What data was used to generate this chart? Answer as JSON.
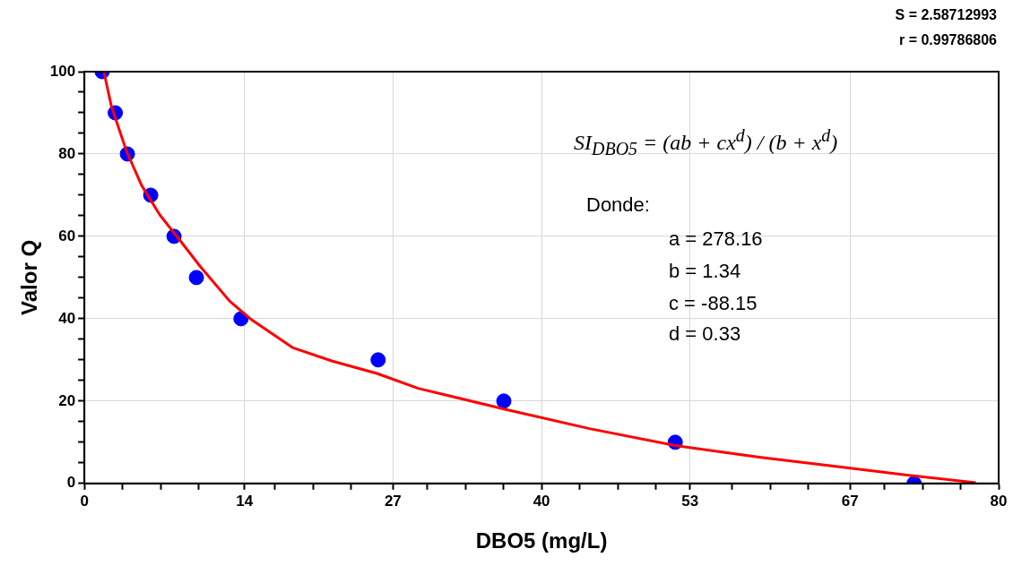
{
  "chart_data": {
    "type": "scatter",
    "xlabel": "DBO5 (mg/L)",
    "ylabel": "Valor Q",
    "annotations": [
      "S = 2.58712993",
      "r = 0.99786806",
      "SI$_{DBO5}$ = (ab + cx$^{d}$) / (b + x$^{d}$)",
      "Donde:",
      "a = 278.16",
      "b = 1.34",
      "c = -88.15",
      "d = 0.33"
    ],
    "series": [
      {
        "color": "#0000ff",
        "x": [
          1.55,
          2.7,
          3.76,
          5.8,
          7.84,
          9.8,
          13.7,
          25.7,
          36.7,
          51.7,
          72.6
        ],
        "values": [
          100,
          90,
          80,
          70,
          60,
          50,
          40,
          30,
          20,
          10,
          0
        ]
      },
      {
        "type": "line",
        "color": "#ff0000",
        "marker": "none",
        "x": [
          1.7,
          2.37,
          3.68,
          5.0,
          6.6,
          8.4,
          10.1,
          12.7,
          14.6,
          18.2,
          21.7,
          25.6,
          29.2,
          36.8,
          44.2,
          51.7,
          59.2,
          66.7,
          72.7,
          78.0
        ],
        "values": [
          100,
          91.5,
          80.7,
          72.4,
          65.2,
          58.9,
          52.8,
          44.3,
          39.8,
          33.0,
          29.7,
          26.7,
          23.1,
          18.0,
          13.3,
          9.2,
          6.3,
          3.8,
          1.8,
          0.2
        ]
      }
    ],
    "marker": "circle",
    "legend": false,
    "grid": true,
    "xlim": [
      0,
      80
    ],
    "xticks": [
      0,
      {
        "value": 3.333,
        "label": null
      },
      {
        "value": 6.667,
        "label": null
      },
      {
        "value": 10,
        "label": null
      },
      14,
      {
        "value": 16.667,
        "label": null
      },
      {
        "value": 20,
        "label": null
      },
      {
        "value": 23.333,
        "label": null
      },
      27,
      {
        "value": 30,
        "label": null
      },
      {
        "value": 33.333,
        "label": null
      },
      {
        "value": 36.667,
        "label": null
      },
      40,
      {
        "value": 43.333,
        "label": null
      },
      {
        "value": 46.667,
        "label": null
      },
      {
        "value": 50,
        "label": null
      },
      53,
      {
        "value": 56.667,
        "label": null
      },
      {
        "value": 60,
        "label": null
      },
      {
        "value": 63.333,
        "label": null
      },
      67,
      {
        "value": 70,
        "label": null
      },
      {
        "value": 73.333,
        "label": null
      },
      {
        "value": 76.667,
        "label": null
      },
      80
    ],
    "ylim": [
      0,
      100
    ],
    "yticks": [
      0,
      {
        "value": 5,
        "label": null
      },
      {
        "value": 10,
        "label": null
      },
      {
        "value": 15,
        "label": null
      },
      20,
      {
        "value": 25,
        "label": null
      },
      {
        "value": 30,
        "label": null
      },
      {
        "value": 35,
        "label": null
      },
      40,
      {
        "value": 45,
        "label": null
      },
      {
        "value": 50,
        "label": null
      },
      {
        "value": 55,
        "label": null
      },
      60,
      {
        "value": 65,
        "label": null
      },
      {
        "value": 70,
        "label": null
      },
      {
        "value": 75,
        "label": null
      },
      80,
      {
        "value": 85,
        "label": null
      },
      {
        "value": 90,
        "label": null
      },
      {
        "value": 95,
        "label": null
      },
      100
    ]
  }
}
